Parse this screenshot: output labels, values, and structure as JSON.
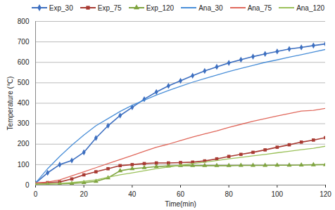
{
  "chart_data": {
    "type": "line",
    "x_label": "Time(min)",
    "y_label": "Temperature (℃)",
    "x": [
      0,
      5,
      10,
      15,
      20,
      25,
      30,
      35,
      40,
      45,
      50,
      55,
      60,
      65,
      70,
      75,
      80,
      85,
      90,
      95,
      100,
      105,
      110,
      115,
      120
    ],
    "series": [
      {
        "name": "Exp_30",
        "color": "#3d6fc0",
        "marker": "diamond",
        "line_style": "solid",
        "values": [
          10,
          60,
          100,
          120,
          160,
          230,
          290,
          340,
          380,
          420,
          455,
          485,
          510,
          535,
          558,
          578,
          597,
          613,
          628,
          641,
          653,
          665,
          673,
          682,
          690
        ]
      },
      {
        "name": "Exp_75",
        "color": "#a83a32",
        "marker": "square",
        "line_style": "solid",
        "values": [
          10,
          12,
          15,
          30,
          50,
          65,
          80,
          95,
          100,
          105,
          108,
          108,
          110,
          112,
          118,
          128,
          140,
          150,
          160,
          172,
          185,
          197,
          210,
          220,
          232
        ]
      },
      {
        "name": "Exp_120",
        "color": "#7fa43f",
        "marker": "triangle",
        "line_style": "solid",
        "values": [
          5,
          5,
          6,
          8,
          12,
          18,
          35,
          70,
          80,
          85,
          90,
          93,
          95,
          95,
          95,
          95,
          95,
          96,
          96,
          96,
          97,
          97,
          98,
          99,
          100
        ]
      },
      {
        "name": "Ana_30",
        "color": "#4a8fd8",
        "line_style": "solid",
        "values": [
          10,
          80,
          140,
          195,
          245,
          290,
          325,
          360,
          390,
          415,
          440,
          462,
          483,
          503,
          521,
          538,
          555,
          570,
          585,
          600,
          612,
          625,
          637,
          650,
          663
        ]
      },
      {
        "name": "Ana_75",
        "color": "#e0685c",
        "line_style": "solid",
        "values": [
          10,
          15,
          25,
          45,
          65,
          85,
          105,
          125,
          145,
          165,
          185,
          200,
          218,
          235,
          250,
          265,
          282,
          297,
          312,
          325,
          338,
          350,
          362,
          365,
          375
        ]
      },
      {
        "name": "Ana_120",
        "color": "#9bc15a",
        "line_style": "solid",
        "values": [
          5,
          6,
          8,
          12,
          18,
          25,
          38,
          50,
          60,
          70,
          80,
          88,
          97,
          105,
          112,
          120,
          128,
          135,
          143,
          150,
          158,
          165,
          173,
          180,
          190
        ]
      }
    ],
    "xlim": [
      0,
      120
    ],
    "xticks": [
      0,
      20,
      40,
      60,
      80,
      100,
      120
    ],
    "ylim": [
      0,
      800
    ],
    "yticks": [
      0,
      100,
      200,
      300,
      400,
      500,
      600,
      700,
      800
    ],
    "grid": true,
    "legend": "top"
  }
}
